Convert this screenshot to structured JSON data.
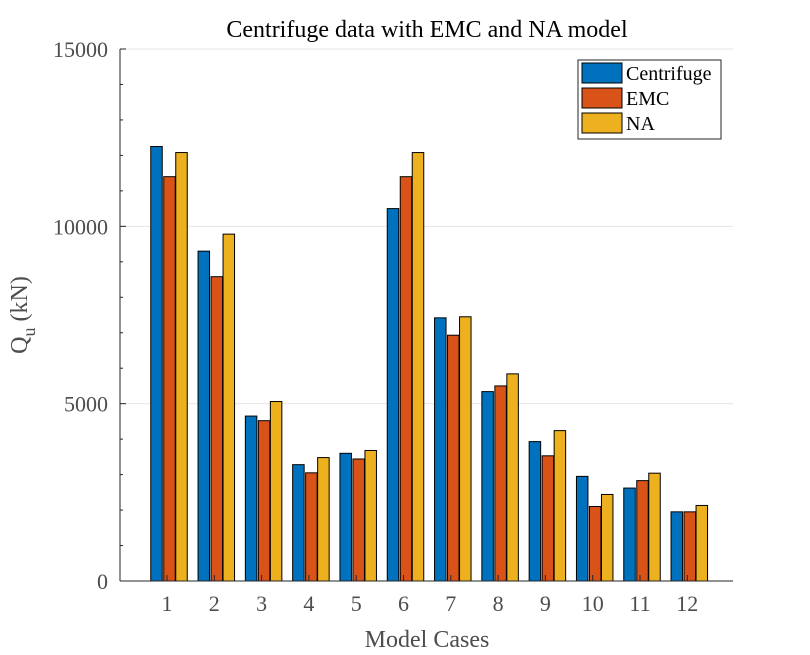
{
  "chart_data": {
    "type": "bar",
    "title": "Centrifuge data with EMC and NA model",
    "xlabel": "Model Cases",
    "ylabel_main": "Q",
    "ylabel_sub": "u",
    "ylabel_unit": " (kN)",
    "ylim": [
      0,
      15000
    ],
    "yticks": [
      0,
      5000,
      10000,
      15000
    ],
    "ytick_labels": [
      "0",
      "5000",
      "10000",
      "15000"
    ],
    "grid": true,
    "legend_position": "top-right",
    "categories": [
      "1",
      "2",
      "3",
      "4",
      "5",
      "6",
      "7",
      "8",
      "9",
      "10",
      "11",
      "12"
    ],
    "series": [
      {
        "name": "Centrifuge",
        "color": "#0072bd",
        "values": [
          12250,
          9300,
          4650,
          3280,
          3600,
          10500,
          7420,
          5340,
          3930,
          2950,
          2620,
          1950
        ]
      },
      {
        "name": "EMC",
        "color": "#d95319",
        "values": [
          11400,
          8580,
          4520,
          3050,
          3440,
          11400,
          6930,
          5500,
          3530,
          2100,
          2830,
          1950
        ]
      },
      {
        "name": "NA",
        "color": "#edb120",
        "values": [
          12080,
          9780,
          5060,
          3480,
          3680,
          12080,
          7450,
          5840,
          4240,
          2440,
          3040,
          2130
        ]
      }
    ]
  }
}
